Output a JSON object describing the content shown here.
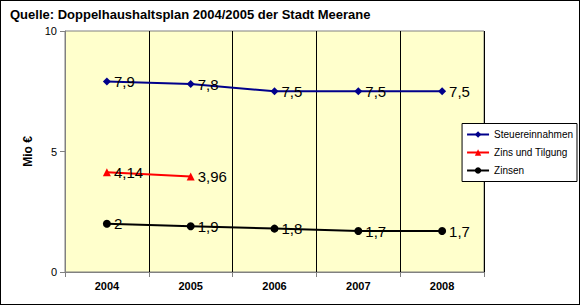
{
  "chart_data": {
    "type": "line",
    "title": "Quelle: Doppelhaushaltsplan 2004/2005 der Stadt Meerane",
    "y_label": "Mio €",
    "categories": [
      "2004",
      "2005",
      "2006",
      "2007",
      "2008"
    ],
    "series": [
      {
        "name": "Steuereinnahmen",
        "color": "#00008b",
        "marker": "diamond",
        "line_style": "solid",
        "values": [
          7.9,
          7.8,
          7.5,
          7.5,
          7.5
        ],
        "value_labels": [
          "7,9",
          "7,8",
          "7,5",
          "7,5",
          "7,5"
        ]
      },
      {
        "name": "Zins und Tilgung",
        "color": "#ff0000",
        "marker": "triangle",
        "line_style": "solid",
        "values": [
          4.14,
          3.96,
          null,
          null,
          null
        ],
        "value_labels": [
          "4,14",
          "3,96",
          null,
          null,
          null
        ]
      },
      {
        "name": "Zinsen",
        "color": "#000000",
        "marker": "circle",
        "line_style": "solid",
        "values": [
          2,
          1.9,
          1.8,
          1.7,
          1.7
        ],
        "value_labels": [
          "2",
          "1,9",
          "1,8",
          "1,7",
          "1,7"
        ]
      }
    ],
    "ylim": [
      0,
      10
    ],
    "yticks": [
      0,
      5,
      10
    ],
    "grid": true,
    "legend": "right",
    "data_labels": true
  }
}
